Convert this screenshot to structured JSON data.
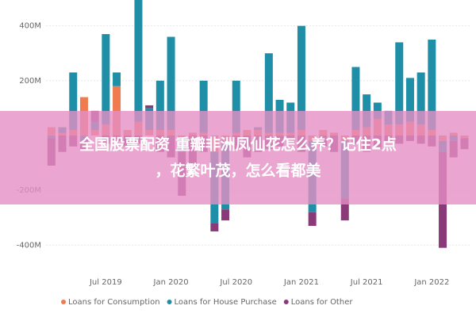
{
  "chart_data": {
    "type": "stacked-bar",
    "categories": [
      null,
      null,
      null,
      null,
      null,
      "Jul 2019",
      null,
      null,
      null,
      null,
      null,
      "Jan 2020",
      null,
      null,
      null,
      null,
      null,
      "Jul 2020",
      null,
      null,
      null,
      null,
      null,
      "Jan 2021",
      null,
      null,
      null,
      null,
      null,
      "Jul 2021",
      null,
      null,
      null,
      null,
      null,
      "Jan 2022",
      null,
      null,
      null
    ],
    "series": [
      {
        "name": "Loans for Consumption",
        "color": "#ef7b4f",
        "values": [
          30,
          10,
          20,
          140,
          20,
          40,
          180,
          20,
          50,
          20,
          20,
          20,
          -20,
          10,
          10,
          -60,
          -20,
          10,
          20,
          20,
          10,
          10,
          10,
          20,
          -20,
          20,
          10,
          -20,
          20,
          30,
          60,
          40,
          40,
          50,
          40,
          20,
          -20,
          10,
          -10
        ]
      },
      {
        "name": "Loans for House Purchase",
        "color": "#1e8fa6",
        "values": [
          -10,
          20,
          210,
          -20,
          30,
          330,
          50,
          0,
          460,
          80,
          180,
          340,
          -40,
          0,
          190,
          -260,
          -250,
          190,
          0,
          10,
          290,
          120,
          110,
          380,
          -260,
          0,
          0,
          -210,
          230,
          120,
          60,
          50,
          300,
          160,
          190,
          330,
          -40,
          -20,
          0
        ]
      },
      {
        "name": "Loans for Other",
        "color": "#8a3a78",
        "values": [
          -100,
          -60,
          -40,
          -30,
          40,
          -30,
          -20,
          -40,
          -30,
          10,
          -60,
          -80,
          -160,
          -120,
          -60,
          -30,
          -40,
          -50,
          -80,
          -60,
          -50,
          -40,
          -30,
          -60,
          -50,
          -40,
          -60,
          -80,
          -30,
          -60,
          -50,
          -20,
          -30,
          -20,
          -30,
          -40,
          -350,
          -60,
          -40
        ]
      }
    ],
    "ylim": [
      -460,
      480
    ],
    "yticks": [
      {
        "value": -400,
        "label": "-400M"
      },
      {
        "value": -200,
        "label": "-200M"
      },
      {
        "value": 200,
        "label": "200M"
      },
      {
        "value": 400,
        "label": "400M"
      }
    ],
    "grid": true
  },
  "banner": {
    "lines": [
      "全国股票配资 重瓣非洲凤仙花怎么养？记住2点",
      "，花繁叶茂，怎么看都美"
    ]
  }
}
